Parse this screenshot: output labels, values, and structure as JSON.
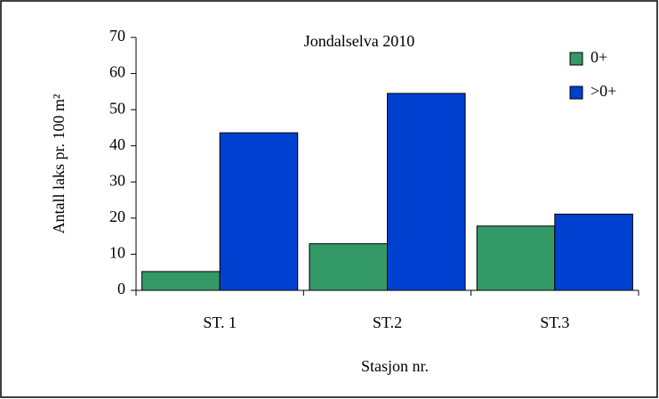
{
  "chart_data": {
    "type": "bar",
    "title": "Jondalselva 2010",
    "categories": [
      "ST. 1",
      "ST.2",
      "ST.3"
    ],
    "series": [
      {
        "name": "0+",
        "color": "#339966",
        "values": [
          5.2,
          12.9,
          17.8
        ]
      },
      {
        "name": ">0+",
        "color": "#0040d0",
        "values": [
          43.6,
          54.5,
          21.1
        ]
      }
    ],
    "ylim": [
      0,
      70
    ],
    "yticks": [
      0,
      10,
      20,
      30,
      40,
      50,
      60,
      70
    ],
    "ylabel": "Antall laks pr. 100 m²",
    "xlabel": "Stasjon nr.",
    "legend": "top-right"
  }
}
